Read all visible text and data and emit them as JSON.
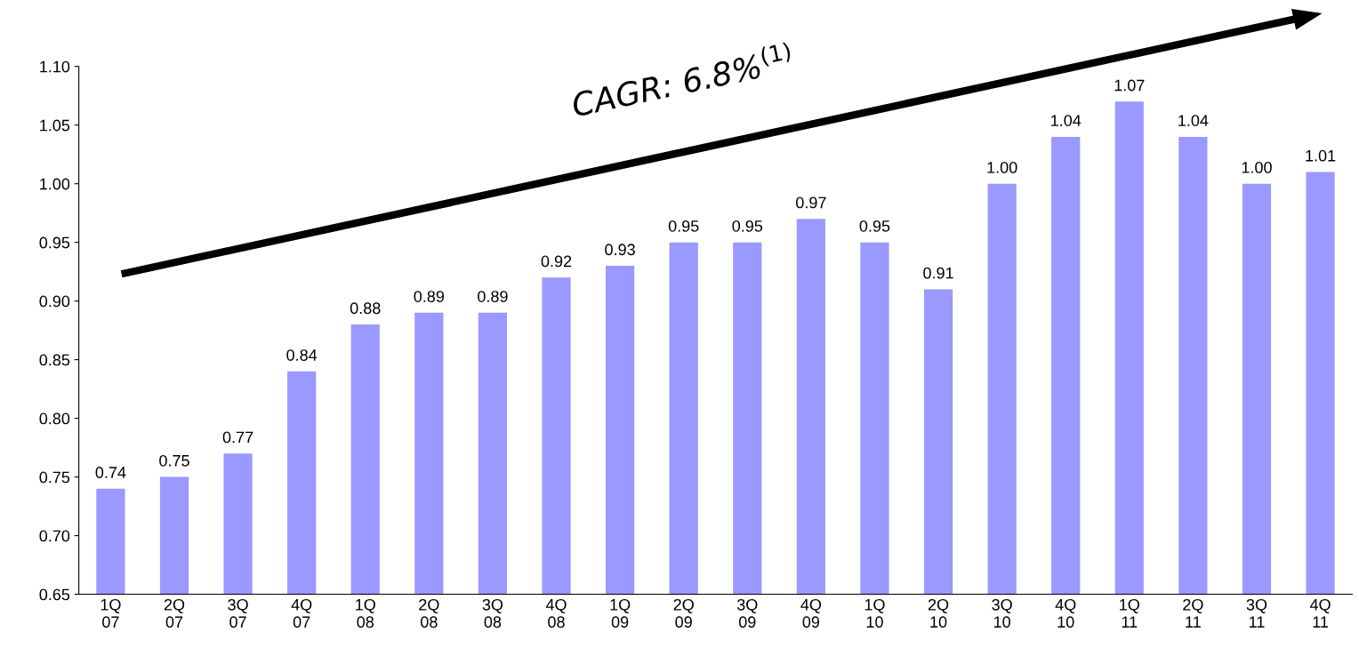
{
  "chart_data": {
    "type": "bar",
    "categories": [
      "1Q\n07",
      "2Q\n07",
      "3Q\n07",
      "4Q\n07",
      "1Q\n08",
      "2Q\n08",
      "3Q\n08",
      "4Q\n08",
      "1Q\n09",
      "2Q\n09",
      "3Q\n09",
      "4Q\n09",
      "1Q\n10",
      "2Q\n10",
      "3Q\n10",
      "4Q\n10",
      "1Q\n11",
      "2Q\n11",
      "3Q\n11",
      "4Q\n11"
    ],
    "values": [
      0.74,
      0.75,
      0.77,
      0.84,
      0.88,
      0.89,
      0.89,
      0.92,
      0.93,
      0.95,
      0.95,
      0.97,
      0.95,
      0.91,
      1.0,
      1.04,
      1.07,
      1.04,
      1.0,
      1.01
    ],
    "value_labels": [
      "0.74",
      "0.75",
      "0.77",
      "0.84",
      "0.88",
      "0.89",
      "0.89",
      "0.92",
      "0.93",
      "0.95",
      "0.95",
      "0.97",
      "0.95",
      "0.91",
      "1.00",
      "1.04",
      "1.07",
      "1.04",
      "1.00",
      "1.01"
    ],
    "color": "#9999ff",
    "ylim": [
      0.65,
      1.1
    ],
    "yticks": [
      {
        "value": 0.65,
        "label": "0.65"
      },
      {
        "value": 0.7,
        "label": "0.70"
      },
      {
        "value": 0.75,
        "label": "0.75"
      },
      {
        "value": 0.8,
        "label": "0.80"
      },
      {
        "value": 0.85,
        "label": "0.85"
      },
      {
        "value": 0.9,
        "label": "0.90"
      },
      {
        "value": 0.95,
        "label": "0.95"
      },
      {
        "value": 1.0,
        "label": "1.00"
      },
      {
        "value": 1.05,
        "label": "1.05"
      },
      {
        "value": 1.1,
        "label": "1.10"
      }
    ],
    "annotations": [
      "CAGR: 6.8%$^{(1)}$"
    ],
    "grid": false,
    "legend": false
  }
}
